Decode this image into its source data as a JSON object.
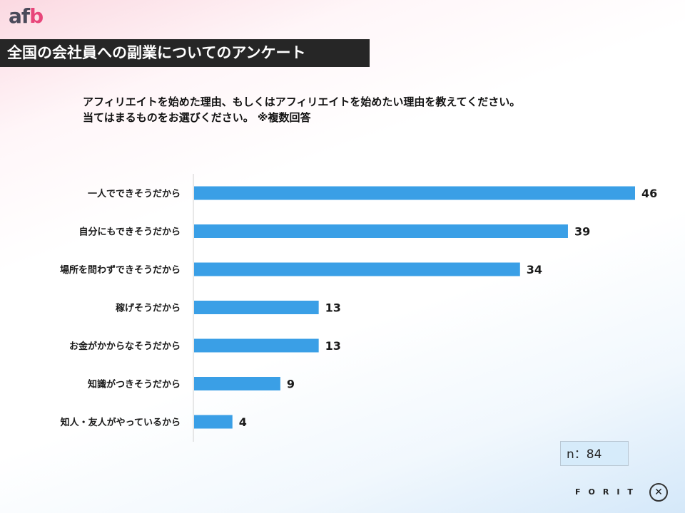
{
  "logo": {
    "prefix": "af",
    "suffix": "b"
  },
  "header": {
    "title": "全国の会社員への副業についてのアンケート"
  },
  "question": {
    "line1": "アフィリエイトを始めた理由、もしくはアフィリエイトを始めたい理由を教えてください。",
    "line2": "当てはまるものをお選びください。 ※複数回答"
  },
  "chart_data": {
    "type": "bar",
    "orientation": "horizontal",
    "categories": [
      "一人でできそうだから",
      "自分にもできそうだから",
      "場所を問わずできそうだから",
      "稼げそうだから",
      "お金がかからなそうだから",
      "知識がつきそうだから",
      "知人・友人がやっているから"
    ],
    "values": [
      46,
      39,
      34,
      13,
      13,
      9,
      4
    ],
    "bar_color": "#3a9fe6",
    "xlim": [
      0,
      46
    ],
    "grid": false
  },
  "sample": {
    "label": "n：84"
  },
  "footer": {
    "brand": "FORIT",
    "mark": "✕"
  }
}
